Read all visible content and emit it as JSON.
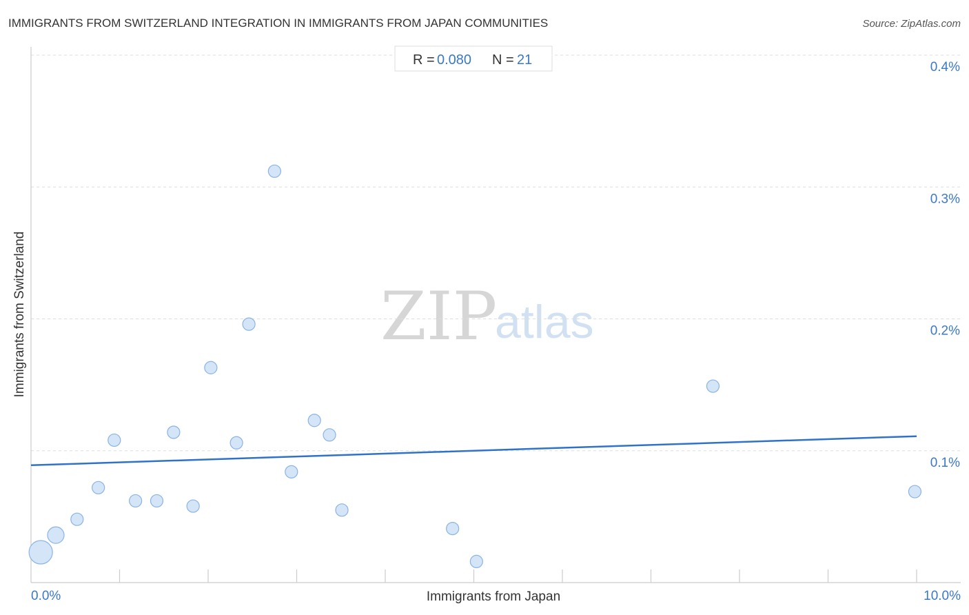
{
  "chart_data": {
    "type": "scatter",
    "title": "IMMIGRANTS FROM SWITZERLAND INTEGRATION IN IMMIGRANTS FROM JAPAN COMMUNITIES",
    "source": "Source: ZipAtlas.com",
    "xlabel": "Immigrants from Japan",
    "ylabel": "Immigrants from Switzerland",
    "xlim": [
      0,
      10
    ],
    "ylim": [
      0,
      0.4
    ],
    "x_tick_labels": [
      "0.0%",
      "10.0%"
    ],
    "y_ticks": [
      {
        "value": 0.1,
        "label": "0.1%"
      },
      {
        "value": 0.2,
        "label": "0.2%"
      },
      {
        "value": 0.3,
        "label": "0.3%"
      },
      {
        "value": 0.4,
        "label": "0.4%"
      }
    ],
    "stats": {
      "r_label": "R =",
      "r_value": "0.080",
      "n_label": "N =",
      "n_value": "21"
    },
    "watermark": {
      "zip": "ZIP",
      "atlas": "atlas"
    },
    "points": [
      {
        "x": 0.11,
        "y": 0.023,
        "size": "large"
      },
      {
        "x": 0.28,
        "y": 0.036,
        "size": "medium"
      },
      {
        "x": 0.52,
        "y": 0.048,
        "size": "normal"
      },
      {
        "x": 0.76,
        "y": 0.072,
        "size": "normal"
      },
      {
        "x": 0.94,
        "y": 0.108,
        "size": "normal"
      },
      {
        "x": 1.18,
        "y": 0.062,
        "size": "normal"
      },
      {
        "x": 1.42,
        "y": 0.062,
        "size": "normal"
      },
      {
        "x": 1.61,
        "y": 0.114,
        "size": "normal"
      },
      {
        "x": 1.83,
        "y": 0.058,
        "size": "normal"
      },
      {
        "x": 2.03,
        "y": 0.163,
        "size": "normal"
      },
      {
        "x": 2.32,
        "y": 0.106,
        "size": "normal"
      },
      {
        "x": 2.46,
        "y": 0.196,
        "size": "normal"
      },
      {
        "x": 2.75,
        "y": 0.312,
        "size": "normal"
      },
      {
        "x": 2.94,
        "y": 0.084,
        "size": "normal"
      },
      {
        "x": 3.2,
        "y": 0.123,
        "size": "normal"
      },
      {
        "x": 3.37,
        "y": 0.112,
        "size": "normal"
      },
      {
        "x": 3.51,
        "y": 0.055,
        "size": "normal"
      },
      {
        "x": 4.76,
        "y": 0.041,
        "size": "normal"
      },
      {
        "x": 5.03,
        "y": 0.016,
        "size": "normal"
      },
      {
        "x": 7.7,
        "y": 0.149,
        "size": "normal"
      },
      {
        "x": 9.98,
        "y": 0.069,
        "size": "normal"
      }
    ],
    "trend_line": {
      "x": [
        0,
        10
      ],
      "y": [
        0.089,
        0.111
      ]
    },
    "colors": {
      "point_fill": "#d5e5f8",
      "point_stroke": "#8ab3e3",
      "trend": "#2f72c8",
      "grid": "#dddddd",
      "axis": "#cccccc"
    }
  }
}
